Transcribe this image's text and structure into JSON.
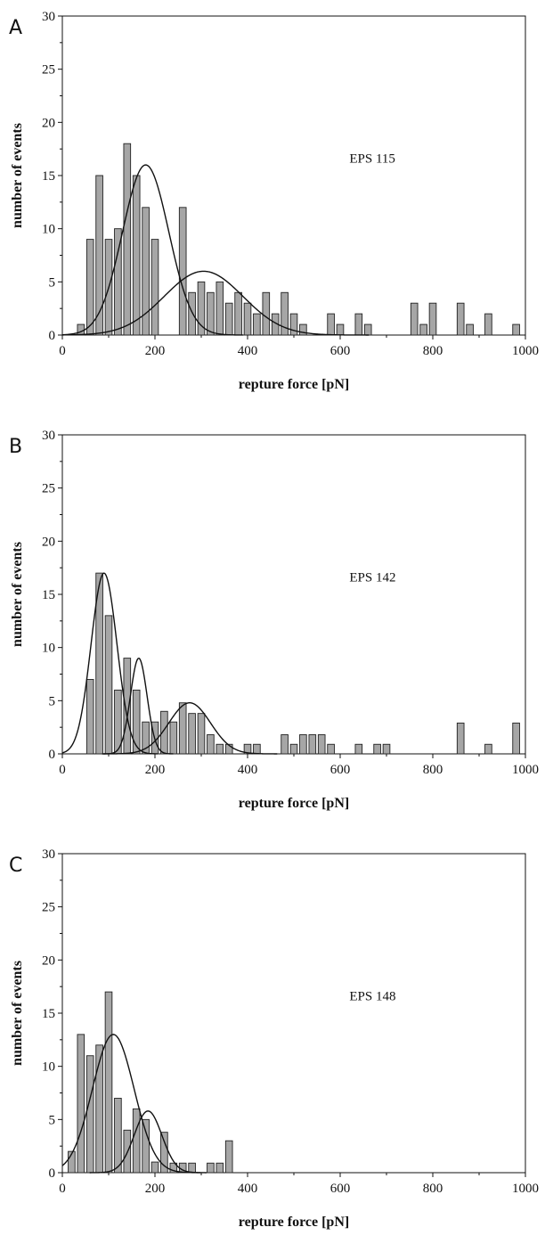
{
  "chart_data": [
    {
      "type": "bar",
      "panel_label": "A",
      "annotation": "EPS 115",
      "xlabel": "repture force [pN]",
      "ylabel": "number of events",
      "xlim": [
        0,
        1000
      ],
      "ylim": [
        0,
        30
      ],
      "x_ticks": [
        0,
        200,
        400,
        600,
        800,
        1000
      ],
      "y_ticks": [
        0,
        5,
        10,
        15,
        20,
        25,
        30
      ],
      "bin_width": 20,
      "bar_color": "#a6a6a6",
      "bars": [
        {
          "x": 40,
          "y": 1
        },
        {
          "x": 60,
          "y": 9
        },
        {
          "x": 80,
          "y": 15
        },
        {
          "x": 100,
          "y": 9
        },
        {
          "x": 120,
          "y": 10
        },
        {
          "x": 140,
          "y": 18
        },
        {
          "x": 160,
          "y": 15
        },
        {
          "x": 180,
          "y": 12
        },
        {
          "x": 200,
          "y": 9
        },
        {
          "x": 260,
          "y": 12
        },
        {
          "x": 280,
          "y": 4
        },
        {
          "x": 300,
          "y": 5
        },
        {
          "x": 320,
          "y": 4
        },
        {
          "x": 340,
          "y": 5
        },
        {
          "x": 360,
          "y": 3
        },
        {
          "x": 380,
          "y": 4
        },
        {
          "x": 400,
          "y": 3
        },
        {
          "x": 420,
          "y": 2
        },
        {
          "x": 440,
          "y": 4
        },
        {
          "x": 460,
          "y": 2
        },
        {
          "x": 480,
          "y": 4
        },
        {
          "x": 500,
          "y": 2
        },
        {
          "x": 520,
          "y": 1
        },
        {
          "x": 580,
          "y": 2
        },
        {
          "x": 600,
          "y": 1
        },
        {
          "x": 640,
          "y": 2
        },
        {
          "x": 660,
          "y": 1
        },
        {
          "x": 760,
          "y": 3
        },
        {
          "x": 780,
          "y": 1
        },
        {
          "x": 800,
          "y": 3
        },
        {
          "x": 860,
          "y": 3
        },
        {
          "x": 880,
          "y": 1
        },
        {
          "x": 920,
          "y": 2
        },
        {
          "x": 980,
          "y": 1
        }
      ],
      "fits": [
        {
          "mean": 180,
          "sd": 50,
          "amp": 16
        },
        {
          "mean": 305,
          "sd": 85,
          "amp": 6
        }
      ]
    },
    {
      "type": "bar",
      "panel_label": "B",
      "annotation": "EPS 142",
      "xlabel": "repture force [pN]",
      "ylabel": "number of events",
      "xlim": [
        0,
        1000
      ],
      "ylim": [
        0,
        30
      ],
      "x_ticks": [
        0,
        200,
        400,
        600,
        800,
        1000
      ],
      "y_ticks": [
        0,
        5,
        10,
        15,
        20,
        25,
        30
      ],
      "bin_width": 20,
      "bar_color": "#a6a6a6",
      "bars": [
        {
          "x": 60,
          "y": 7
        },
        {
          "x": 80,
          "y": 17
        },
        {
          "x": 100,
          "y": 13
        },
        {
          "x": 120,
          "y": 6
        },
        {
          "x": 140,
          "y": 9
        },
        {
          "x": 160,
          "y": 6
        },
        {
          "x": 180,
          "y": 3
        },
        {
          "x": 200,
          "y": 3
        },
        {
          "x": 220,
          "y": 4
        },
        {
          "x": 240,
          "y": 3
        },
        {
          "x": 260,
          "y": 4.8
        },
        {
          "x": 280,
          "y": 3.8
        },
        {
          "x": 300,
          "y": 3.8
        },
        {
          "x": 320,
          "y": 1.8
        },
        {
          "x": 340,
          "y": 0.9
        },
        {
          "x": 360,
          "y": 0.9
        },
        {
          "x": 400,
          "y": 0.9
        },
        {
          "x": 420,
          "y": 0.9
        },
        {
          "x": 480,
          "y": 1.8
        },
        {
          "x": 500,
          "y": 0.9
        },
        {
          "x": 520,
          "y": 1.8
        },
        {
          "x": 540,
          "y": 1.8
        },
        {
          "x": 560,
          "y": 1.8
        },
        {
          "x": 580,
          "y": 0.9
        },
        {
          "x": 640,
          "y": 0.9
        },
        {
          "x": 680,
          "y": 0.9
        },
        {
          "x": 700,
          "y": 0.9
        },
        {
          "x": 860,
          "y": 2.9
        },
        {
          "x": 920,
          "y": 0.9
        },
        {
          "x": 980,
          "y": 2.9
        }
      ],
      "fits": [
        {
          "mean": 90,
          "sd": 28,
          "amp": 17
        },
        {
          "mean": 165,
          "sd": 18,
          "amp": 9
        },
        {
          "mean": 275,
          "sd": 45,
          "amp": 4.8
        }
      ]
    },
    {
      "type": "bar",
      "panel_label": "C",
      "annotation": "EPS 148",
      "xlabel": "repture force [pN]",
      "ylabel": "number of events",
      "xlim": [
        0,
        1000
      ],
      "ylim": [
        0,
        30
      ],
      "x_ticks": [
        0,
        200,
        400,
        600,
        800,
        1000
      ],
      "y_ticks": [
        0,
        5,
        10,
        15,
        20,
        25,
        30
      ],
      "bin_width": 20,
      "bar_color": "#a6a6a6",
      "bars": [
        {
          "x": 20,
          "y": 2
        },
        {
          "x": 40,
          "y": 13
        },
        {
          "x": 60,
          "y": 11
        },
        {
          "x": 80,
          "y": 12
        },
        {
          "x": 100,
          "y": 17
        },
        {
          "x": 120,
          "y": 7
        },
        {
          "x": 140,
          "y": 4
        },
        {
          "x": 160,
          "y": 6
        },
        {
          "x": 180,
          "y": 5
        },
        {
          "x": 200,
          "y": 1
        },
        {
          "x": 220,
          "y": 3.8
        },
        {
          "x": 240,
          "y": 0.9
        },
        {
          "x": 260,
          "y": 0.9
        },
        {
          "x": 280,
          "y": 0.9
        },
        {
          "x": 320,
          "y": 0.9
        },
        {
          "x": 340,
          "y": 0.9
        },
        {
          "x": 360,
          "y": 3
        }
      ],
      "fits": [
        {
          "mean": 110,
          "sd": 45,
          "amp": 13
        },
        {
          "mean": 185,
          "sd": 30,
          "amp": 5.8
        }
      ]
    }
  ]
}
